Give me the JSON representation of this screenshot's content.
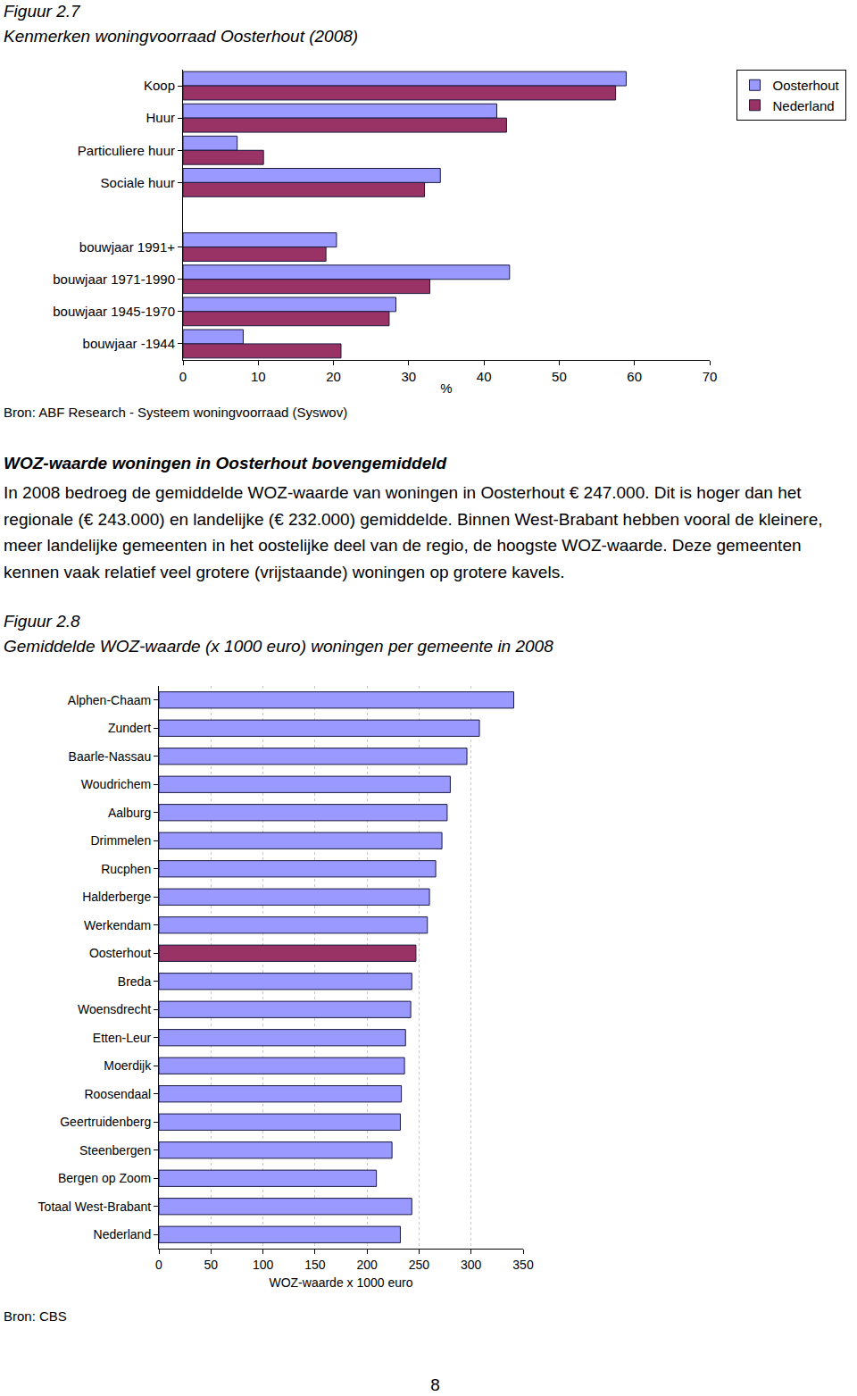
{
  "figure_2_7": {
    "label": "Figuur 2.7",
    "source": "Bron: ABF Research - Systeem woningvoorraad (Syswov)"
  },
  "text": {
    "heading": "WOZ-waarde woningen in Oosterhout bovengemiddeld",
    "paragraph": "In 2008 bedroeg de gemiddelde WOZ-waarde van woningen in Oosterhout € 247.000. Dit is hoger dan het regionale (€ 243.000) en landelijke (€ 232.000) gemiddelde. Binnen West-Brabant hebben vooral de kleinere, meer landelijke gemeenten in het oostelijke deel van de regio, de hoogste WOZ-waarde. Deze gemeenten kennen vaak relatief veel grotere (vrijstaande) woningen op grotere kavels."
  },
  "figure_2_8": {
    "label": "Figuur 2.8",
    "source": "Bron: CBS"
  },
  "page_number": "8",
  "chart_data": [
    {
      "type": "bar",
      "orientation": "horizontal",
      "title": "Kenmerken woningvoorraad Oosterhout (2008)",
      "xlabel": "%",
      "categories": [
        "Koop",
        "Huur",
        "Particuliere huur",
        "Sociale huur",
        null,
        "bouwjaar 1991+",
        "bouwjaar 1971-1990",
        "bouwjaar 1945-1970",
        "bouwjaar -1944"
      ],
      "series": [
        {
          "name": "Oosterhout",
          "color": "#9999ff",
          "values": [
            58.9,
            41.7,
            7.2,
            34.2,
            null,
            20.4,
            43.4,
            28.3,
            8.0
          ]
        },
        {
          "name": "Nederland",
          "color": "#993366",
          "values": [
            57.5,
            43.0,
            10.7,
            32.1,
            null,
            19.0,
            32.8,
            27.4,
            21.0
          ]
        }
      ],
      "xlim": [
        0,
        70
      ],
      "xticks": [
        0,
        10,
        20,
        30,
        40,
        50,
        60,
        70
      ],
      "legend": "right",
      "grid": false
    },
    {
      "type": "bar",
      "orientation": "horizontal",
      "title": "Gemiddelde WOZ-waarde (x 1000 euro) woningen per gemeente in 2008",
      "xlabel": "WOZ-waarde x 1000 euro",
      "categories": [
        "Alphen-Chaam",
        "Zundert",
        "Baarle-Nassau",
        "Woudrichem",
        "Aalburg",
        "Drimmelen",
        "Rucphen",
        "Halderberge",
        "Werkendam",
        "Oosterhout",
        "Breda",
        "Woensdrecht",
        "Etten-Leur",
        "Moerdijk",
        "Roosendaal",
        "Geertruidenberg",
        "Steenbergen",
        "Bergen op Zoom",
        "Totaal West-Brabant",
        "Nederland"
      ],
      "values": [
        341,
        308,
        296,
        280,
        277,
        272,
        266,
        260,
        258,
        247,
        243,
        242,
        237,
        236,
        233,
        232,
        224,
        209,
        243,
        232
      ],
      "colors": [
        "#9999ff",
        "#9999ff",
        "#9999ff",
        "#9999ff",
        "#9999ff",
        "#9999ff",
        "#9999ff",
        "#9999ff",
        "#9999ff",
        "#993366",
        "#9999ff",
        "#9999ff",
        "#9999ff",
        "#9999ff",
        "#9999ff",
        "#9999ff",
        "#9999ff",
        "#9999ff",
        "#9999ff",
        "#9999ff"
      ],
      "xlim": [
        0,
        350
      ],
      "xticks": [
        0,
        50,
        100,
        150,
        200,
        250,
        300,
        350
      ],
      "grid": true
    }
  ]
}
